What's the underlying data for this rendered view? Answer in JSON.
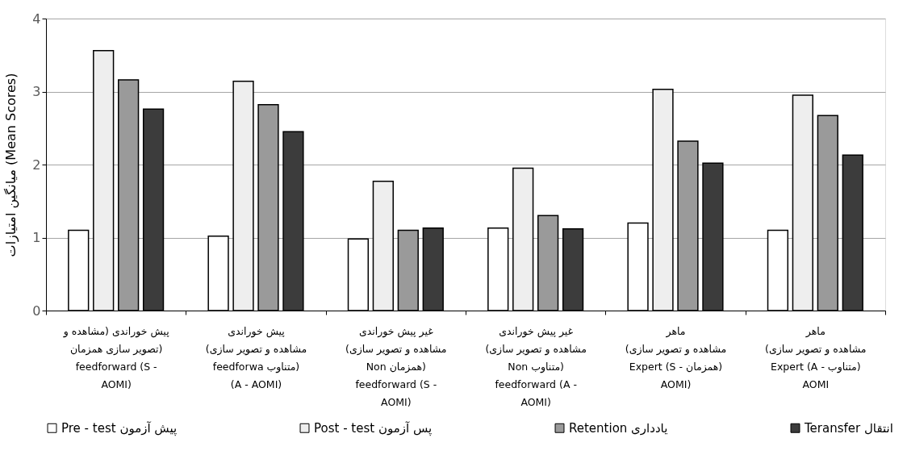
{
  "chart_data": {
    "type": "bar",
    "ylabel": "میانگین امتیازات (Mean Scores)",
    "categories": [
      "پیش خوراندی (مشاهده و\nتصویر سازی همزمان)\nfeedforward (S -\nAOMI)",
      "پیش خوراندی\n(مشاهده و تصویر سازی\nfeedforwa متناوب)\n(A - AOMI)",
      "غیر پیش خوراندی\n(مشاهده و تصویر سازی\nNon همزمان)\nfeedforward (S -\nAOMI)",
      "غیر پیش خوراندی\n(مشاهده و تصویر سازی\nNon متناوب)\nfeedforward (A -\nAOMI)",
      "ماهر\n(مشاهده و تصویر سازی\nExpert (S - همزمان)\nAOMI)",
      "ماهر\n(مشاهده و تصویر سازی\nExpert (A - متناوب)\nAOMI"
    ],
    "series": [
      {
        "name": "Pre - test پیش آزمون",
        "color": "#ffffff",
        "values": [
          1.1,
          1.02,
          0.98,
          1.13,
          1.2,
          1.1
        ]
      },
      {
        "name": "Post - test پس آزمون",
        "color": "#eeeeee",
        "values": [
          3.56,
          3.14,
          1.77,
          1.95,
          3.03,
          2.95
        ]
      },
      {
        "name": "Retention یادداری",
        "color": "#9a9a9a",
        "values": [
          3.16,
          2.82,
          1.1,
          1.3,
          2.32,
          2.67
        ]
      },
      {
        "name": "Teransfer انتقال",
        "color": "#3c3c3c",
        "values": [
          2.76,
          2.45,
          1.13,
          1.12,
          2.02,
          2.13
        ]
      }
    ],
    "ylim": [
      0,
      4
    ],
    "yticks": [
      0,
      1,
      2,
      3,
      4
    ],
    "grid": "y",
    "legend": "bottom"
  }
}
